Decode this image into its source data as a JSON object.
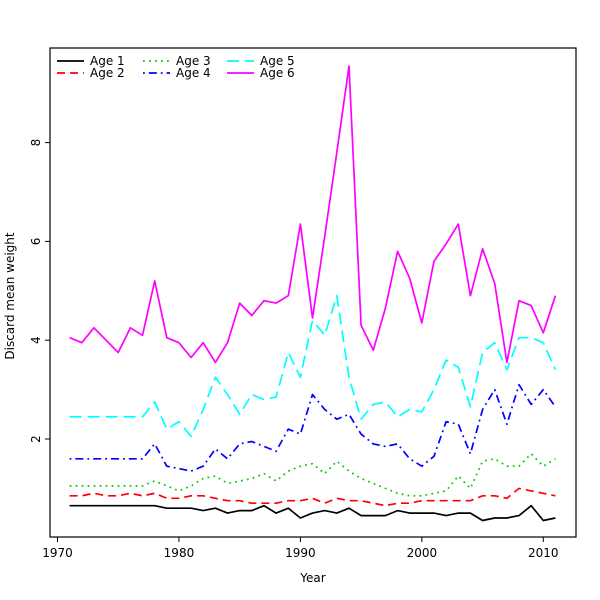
{
  "axes": {
    "xlabel": "Year",
    "ylabel": "Discard mean weight"
  },
  "chart_data": {
    "type": "line",
    "title": "",
    "xlabel": "Year",
    "ylabel": "Discard mean weight",
    "x_ticks": [
      1970,
      1980,
      1990,
      2000,
      2010
    ],
    "y_ticks": [
      2,
      4,
      6,
      8
    ],
    "xlim": [
      1969.4,
      2012.6
    ],
    "ylim": [
      0.03,
      9.93
    ],
    "grid": false,
    "legend_position": "top-left",
    "legend_columns": 3,
    "x": [
      1971,
      1972,
      1973,
      1974,
      1975,
      1976,
      1977,
      1978,
      1979,
      1980,
      1981,
      1982,
      1983,
      1984,
      1985,
      1986,
      1987,
      1988,
      1989,
      1990,
      1991,
      1992,
      1993,
      1994,
      1995,
      1996,
      1997,
      1998,
      1999,
      2000,
      2001,
      2002,
      2003,
      2004,
      2005,
      2006,
      2007,
      2008,
      2009,
      2010,
      2011
    ],
    "series": [
      {
        "name": "Age 1",
        "color": "#000000",
        "linestyle": "solid",
        "values": [
          0.65,
          0.65,
          0.65,
          0.65,
          0.65,
          0.65,
          0.65,
          0.65,
          0.6,
          0.6,
          0.6,
          0.55,
          0.6,
          0.5,
          0.55,
          0.55,
          0.65,
          0.5,
          0.6,
          0.4,
          0.5,
          0.55,
          0.5,
          0.6,
          0.45,
          0.45,
          0.45,
          0.55,
          0.5,
          0.5,
          0.5,
          0.45,
          0.5,
          0.5,
          0.35,
          0.4,
          0.4,
          0.45,
          0.65,
          0.35,
          0.4
        ]
      },
      {
        "name": "Age 2",
        "color": "#FF0000",
        "linestyle": "dashed",
        "values": [
          0.85,
          0.85,
          0.9,
          0.85,
          0.85,
          0.9,
          0.85,
          0.9,
          0.8,
          0.8,
          0.85,
          0.85,
          0.8,
          0.75,
          0.75,
          0.7,
          0.7,
          0.7,
          0.75,
          0.75,
          0.8,
          0.7,
          0.8,
          0.75,
          0.75,
          0.7,
          0.65,
          0.7,
          0.7,
          0.75,
          0.75,
          0.75,
          0.75,
          0.75,
          0.85,
          0.85,
          0.8,
          1.0,
          0.95,
          0.9,
          0.85
        ]
      },
      {
        "name": "Age 3",
        "color": "#00CD00",
        "linestyle": "dotted",
        "values": [
          1.05,
          1.05,
          1.05,
          1.05,
          1.05,
          1.05,
          1.05,
          1.15,
          1.05,
          0.95,
          1.05,
          1.2,
          1.25,
          1.1,
          1.15,
          1.2,
          1.3,
          1.15,
          1.35,
          1.45,
          1.5,
          1.3,
          1.55,
          1.35,
          1.2,
          1.1,
          1.0,
          0.9,
          0.85,
          0.85,
          0.9,
          0.95,
          1.25,
          1.0,
          1.55,
          1.6,
          1.45,
          1.45,
          1.7,
          1.45,
          1.6
        ]
      },
      {
        "name": "Age 4",
        "color": "#0000FF",
        "linestyle": "dashdot",
        "values": [
          1.6,
          1.6,
          1.6,
          1.6,
          1.6,
          1.6,
          1.6,
          1.9,
          1.45,
          1.4,
          1.35,
          1.45,
          1.8,
          1.6,
          1.9,
          1.95,
          1.85,
          1.75,
          2.2,
          2.1,
          2.9,
          2.6,
          2.4,
          2.5,
          2.1,
          1.9,
          1.85,
          1.9,
          1.6,
          1.45,
          1.65,
          2.35,
          2.3,
          1.7,
          2.6,
          3.0,
          2.3,
          3.1,
          2.7,
          3.0,
          2.65
        ]
      },
      {
        "name": "Age 5",
        "color": "#00FFFF",
        "linestyle": "longdash",
        "values": [
          2.45,
          2.45,
          2.45,
          2.45,
          2.45,
          2.45,
          2.45,
          2.75,
          2.2,
          2.35,
          2.05,
          2.6,
          3.25,
          2.9,
          2.5,
          2.9,
          2.8,
          2.85,
          3.75,
          3.25,
          4.4,
          4.1,
          4.9,
          3.25,
          2.4,
          2.7,
          2.75,
          2.45,
          2.6,
          2.55,
          3.0,
          3.6,
          3.45,
          2.65,
          3.75,
          3.95,
          3.4,
          4.05,
          4.05,
          3.95,
          3.4
        ]
      },
      {
        "name": "Age 6",
        "color": "#FF00FF",
        "linestyle": "solid",
        "values": [
          4.05,
          3.95,
          4.25,
          4.0,
          3.75,
          4.25,
          4.1,
          5.2,
          4.05,
          3.95,
          3.65,
          3.95,
          3.55,
          3.95,
          4.75,
          4.5,
          4.8,
          4.75,
          4.9,
          6.35,
          4.45,
          6.1,
          7.8,
          9.55,
          4.3,
          3.8,
          4.65,
          5.8,
          5.25,
          4.35,
          5.6,
          5.95,
          6.35,
          4.9,
          5.85,
          5.15,
          3.55,
          4.8,
          4.7,
          4.15,
          4.9
        ]
      }
    ]
  }
}
